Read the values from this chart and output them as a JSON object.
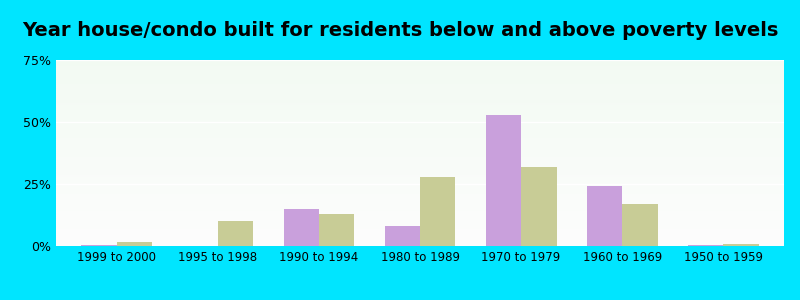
{
  "title": "Year house/condo built for residents below and above poverty levels",
  "categories": [
    "1999 to 2000",
    "1995 to 1998",
    "1990 to 1994",
    "1980 to 1989",
    "1970 to 1979",
    "1960 to 1969",
    "1950 to 1959"
  ],
  "below_poverty": [
    0.5,
    0.0,
    15.0,
    8.0,
    53.0,
    24.0,
    0.5
  ],
  "above_poverty": [
    1.5,
    10.0,
    13.0,
    28.0,
    32.0,
    17.0,
    1.0
  ],
  "below_color": "#c9a0dc",
  "above_color": "#c8cc96",
  "ylim": [
    0,
    75
  ],
  "yticks": [
    0,
    25,
    50,
    75
  ],
  "ytick_labels": [
    "0%",
    "25%",
    "50%",
    "75%"
  ],
  "background_top": "#f0f8e8",
  "background_bottom": "#e8f8f0",
  "outer_background": "#00e5ff",
  "bar_width": 0.35,
  "title_fontsize": 14
}
